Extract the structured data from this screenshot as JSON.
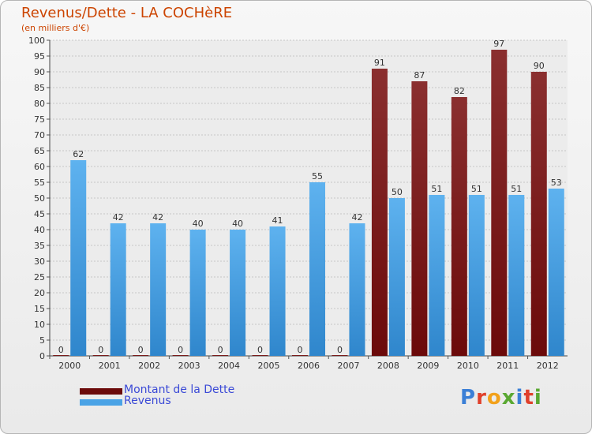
{
  "colors": {
    "dette": "#6b0a0a",
    "revenus": "#4aa3e6",
    "title": "#cc4400",
    "legend_text": "#3a49d6"
  },
  "chart_data": {
    "type": "bar",
    "title": "Revenus/Dette - LA COCHèRE",
    "subtitle": "(en milliers d'€)",
    "categories": [
      "2000",
      "2001",
      "2002",
      "2003",
      "2004",
      "2005",
      "2006",
      "2007",
      "2008",
      "2009",
      "2010",
      "2011",
      "2012"
    ],
    "series": [
      {
        "name": "Montant de la Dette",
        "values": [
          0,
          0,
          0,
          0,
          0,
          0,
          0,
          0,
          91,
          87,
          82,
          97,
          90
        ]
      },
      {
        "name": "Revenus",
        "values": [
          62,
          42,
          42,
          40,
          40,
          41,
          55,
          42,
          50,
          51,
          51,
          51,
          53
        ]
      }
    ],
    "ylim": [
      0,
      100
    ],
    "yticks": [
      0,
      5,
      10,
      15,
      20,
      25,
      30,
      35,
      40,
      45,
      50,
      55,
      60,
      65,
      70,
      75,
      80,
      85,
      90,
      95,
      100
    ],
    "grid": true,
    "legend": "bottom-left"
  },
  "logo": {
    "text": "Proxiti"
  }
}
